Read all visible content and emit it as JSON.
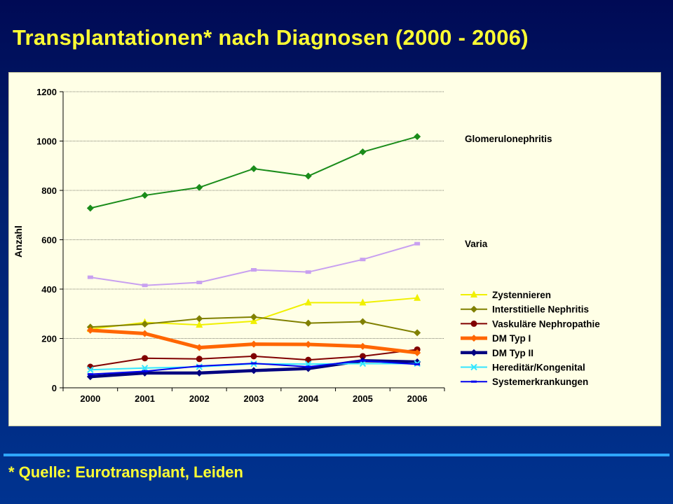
{
  "title": "Transplantationen* nach Diagnosen (2000 - 2006)",
  "footnote": "* Quelle: Eurotransplant, Leiden",
  "chart_data": {
    "type": "line",
    "ylabel": "Anzahl",
    "xlabel": "",
    "categories": [
      "2000",
      "2001",
      "2002",
      "2003",
      "2004",
      "2005",
      "2006"
    ],
    "ylim": [
      0,
      1200
    ],
    "yticks": [
      0,
      200,
      400,
      600,
      800,
      1000,
      1200
    ],
    "grid": true,
    "legend_position": "right",
    "series": [
      {
        "name": "Glomerulonephritis",
        "color": "#1a8c1a",
        "marker": "diamond",
        "values": [
          728,
          780,
          812,
          888,
          858,
          956,
          1018
        ]
      },
      {
        "name": "Varia",
        "color": "#c8a0f0",
        "marker": "square",
        "values": [
          448,
          415,
          427,
          478,
          469,
          520,
          584
        ]
      },
      {
        "name": "Zystennieren",
        "color": "#f0f000",
        "marker": "triangle",
        "values": [
          238,
          265,
          255,
          270,
          345,
          345,
          364
        ]
      },
      {
        "name": "Interstitielle Nephritis",
        "color": "#808000",
        "marker": "diamond",
        "values": [
          246,
          258,
          280,
          287,
          262,
          268,
          223
        ]
      },
      {
        "name": "Vaskuläre Nephropathie",
        "color": "#800000",
        "marker": "circle",
        "values": [
          85,
          120,
          117,
          128,
          113,
          128,
          155
        ]
      },
      {
        "name": "DM Typ I",
        "color": "#ff6600",
        "marker": "diamond",
        "values": [
          233,
          220,
          163,
          177,
          176,
          168,
          142
        ]
      },
      {
        "name": "DM Typ II",
        "color": "#000080",
        "marker": "diamond",
        "values": [
          45,
          60,
          60,
          70,
          78,
          110,
          105
        ]
      },
      {
        "name": "Hereditär/Kongenital",
        "color": "#33e6ff",
        "marker": "x",
        "values": [
          73,
          80,
          85,
          97,
          96,
          98,
          98
        ]
      },
      {
        "name": "Systemerkrankungen",
        "color": "#0000ee",
        "marker": "dash",
        "values": [
          55,
          67,
          88,
          99,
          85,
          110,
          95
        ]
      }
    ]
  }
}
